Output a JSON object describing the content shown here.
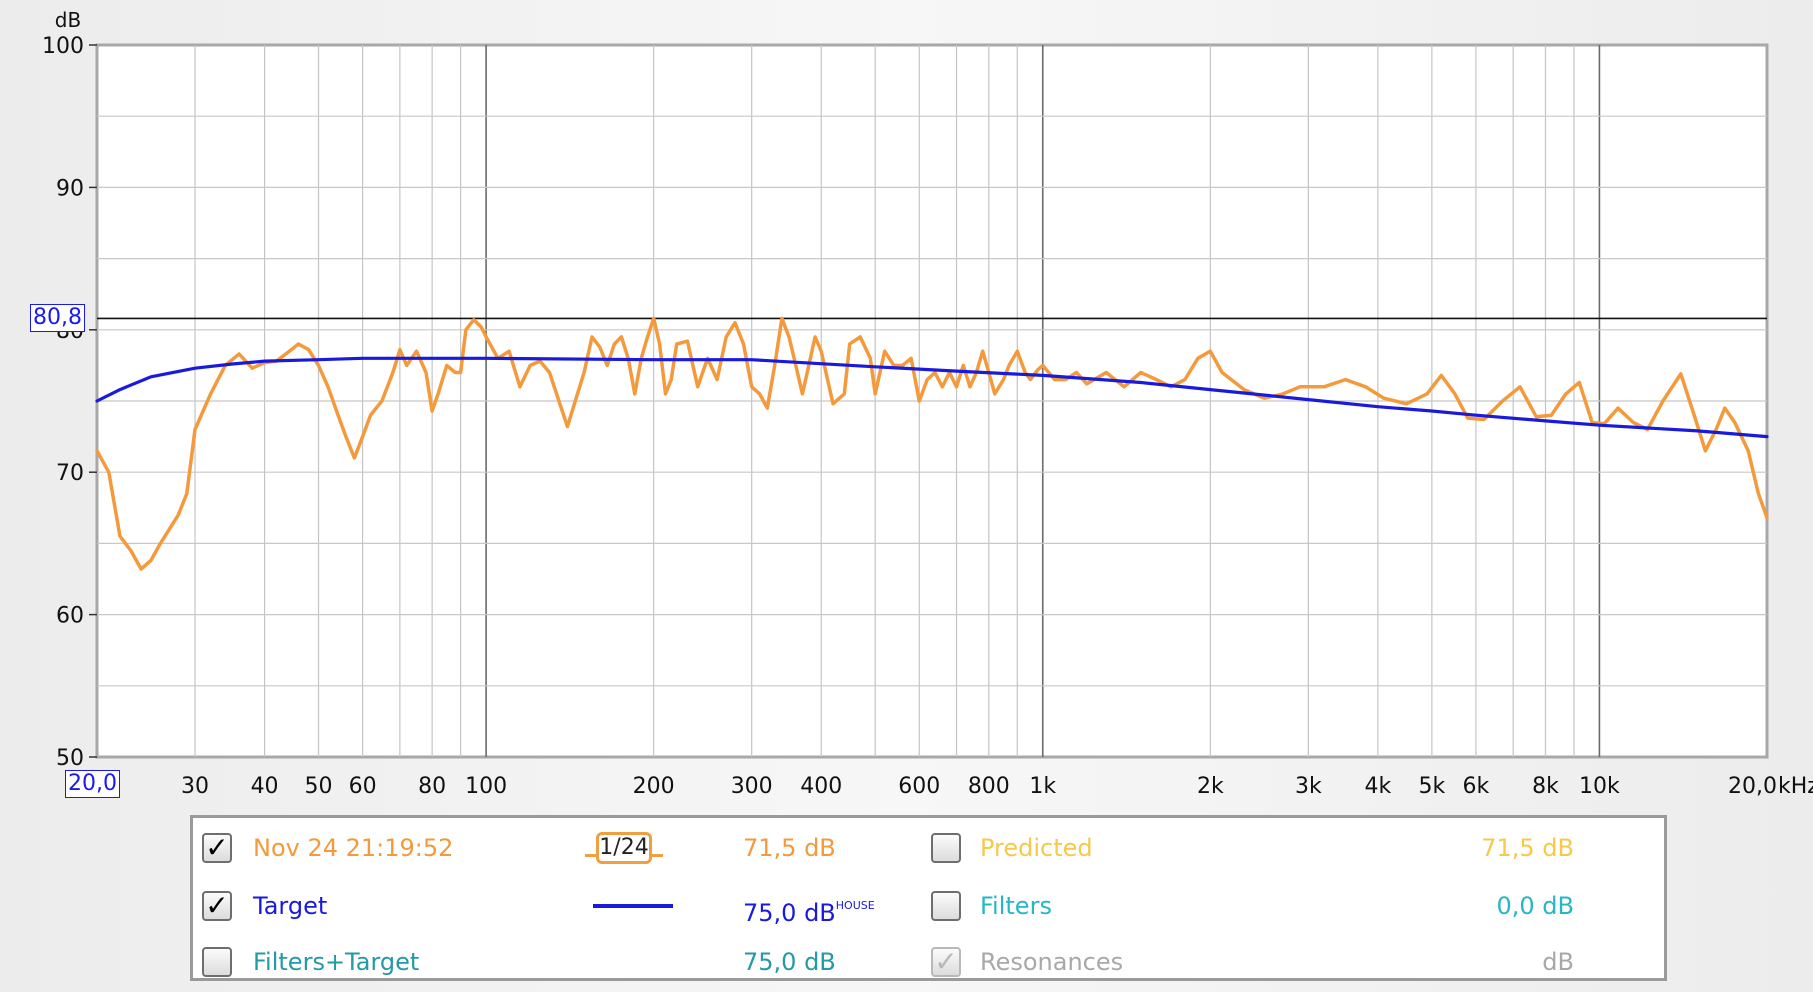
{
  "chart_data": {
    "type": "line",
    "ylabel": "dB",
    "xunit": "kHz",
    "x_scale": "log",
    "xlim": [
      20,
      20000
    ],
    "ylim": [
      50,
      100
    ],
    "y_ticks": [
      "100",
      "90",
      "80",
      "70",
      "60",
      "50"
    ],
    "x_tick_labels": [
      {
        "f": 20,
        "label": "20,0"
      },
      {
        "f": 30,
        "label": "30"
      },
      {
        "f": 40,
        "label": "40"
      },
      {
        "f": 50,
        "label": "50"
      },
      {
        "f": 60,
        "label": "60"
      },
      {
        "f": 80,
        "label": "80"
      },
      {
        "f": 100,
        "label": "100"
      },
      {
        "f": 200,
        "label": "200"
      },
      {
        "f": 300,
        "label": "300"
      },
      {
        "f": 400,
        "label": "400"
      },
      {
        "f": 600,
        "label": "600"
      },
      {
        "f": 800,
        "label": "800"
      },
      {
        "f": 1000,
        "label": "1k"
      },
      {
        "f": 2000,
        "label": "2k"
      },
      {
        "f": 3000,
        "label": "3k"
      },
      {
        "f": 4000,
        "label": "4k"
      },
      {
        "f": 5000,
        "label": "5k"
      },
      {
        "f": 6000,
        "label": "6k"
      },
      {
        "f": 8000,
        "label": "8k"
      },
      {
        "f": 10000,
        "label": "10k"
      },
      {
        "f": 20000,
        "label": "20,0"
      }
    ],
    "cursor": {
      "y": 80.8,
      "label": "80,8"
    },
    "x_cursor_label": "20,0",
    "grid": true,
    "series": [
      {
        "name": "Nov 24 21:19:52",
        "color": "#f49a3c",
        "points": [
          [
            20,
            71.5
          ],
          [
            21,
            70
          ],
          [
            22,
            65.5
          ],
          [
            23,
            64.5
          ],
          [
            24,
            63.2
          ],
          [
            25,
            63.8
          ],
          [
            26,
            65
          ],
          [
            28,
            67
          ],
          [
            29,
            68.5
          ],
          [
            30,
            73
          ],
          [
            32,
            75.5
          ],
          [
            34,
            77.5
          ],
          [
            36,
            78.3
          ],
          [
            38,
            77.3
          ],
          [
            40,
            77.7
          ],
          [
            42,
            77.8
          ],
          [
            44,
            78.4
          ],
          [
            46,
            79
          ],
          [
            48,
            78.6
          ],
          [
            50,
            77.5
          ],
          [
            52,
            76
          ],
          [
            54,
            74.2
          ],
          [
            56,
            72.5
          ],
          [
            58,
            71
          ],
          [
            60,
            72.5
          ],
          [
            62,
            74
          ],
          [
            65,
            75
          ],
          [
            68,
            77
          ],
          [
            70,
            78.6
          ],
          [
            72,
            77.5
          ],
          [
            75,
            78.5
          ],
          [
            78,
            77
          ],
          [
            80,
            74.3
          ],
          [
            82,
            75.5
          ],
          [
            85,
            77.5
          ],
          [
            88,
            77
          ],
          [
            90,
            77
          ],
          [
            92,
            80
          ],
          [
            95,
            80.7
          ],
          [
            98,
            80.2
          ],
          [
            100,
            79.5
          ],
          [
            105,
            78
          ],
          [
            110,
            78.5
          ],
          [
            115,
            76
          ],
          [
            120,
            77.5
          ],
          [
            125,
            77.8
          ],
          [
            130,
            77
          ],
          [
            140,
            73.2
          ],
          [
            150,
            77
          ],
          [
            155,
            79.5
          ],
          [
            160,
            78.8
          ],
          [
            165,
            77.5
          ],
          [
            170,
            79
          ],
          [
            175,
            79.5
          ],
          [
            180,
            78
          ],
          [
            185,
            75.5
          ],
          [
            190,
            78
          ],
          [
            195,
            79.5
          ],
          [
            200,
            80.8
          ],
          [
            205,
            79
          ],
          [
            210,
            75.5
          ],
          [
            215,
            76.5
          ],
          [
            220,
            79
          ],
          [
            230,
            79.2
          ],
          [
            240,
            76
          ],
          [
            250,
            78
          ],
          [
            260,
            76.5
          ],
          [
            270,
            79.5
          ],
          [
            280,
            80.5
          ],
          [
            290,
            79
          ],
          [
            300,
            76
          ],
          [
            310,
            75.5
          ],
          [
            320,
            74.5
          ],
          [
            330,
            77.5
          ],
          [
            340,
            80.8
          ],
          [
            350,
            79.5
          ],
          [
            360,
            77.5
          ],
          [
            370,
            75.5
          ],
          [
            380,
            77.5
          ],
          [
            390,
            79.5
          ],
          [
            400,
            78.5
          ],
          [
            420,
            74.8
          ],
          [
            440,
            75.5
          ],
          [
            450,
            79
          ],
          [
            470,
            79.5
          ],
          [
            490,
            78
          ],
          [
            500,
            75.5
          ],
          [
            520,
            78.5
          ],
          [
            540,
            77.5
          ],
          [
            560,
            77.5
          ],
          [
            580,
            78
          ],
          [
            600,
            75
          ],
          [
            620,
            76.5
          ],
          [
            640,
            77
          ],
          [
            660,
            76
          ],
          [
            680,
            77
          ],
          [
            700,
            76
          ],
          [
            720,
            77.5
          ],
          [
            740,
            76
          ],
          [
            760,
            77
          ],
          [
            780,
            78.5
          ],
          [
            800,
            77
          ],
          [
            820,
            75.5
          ],
          [
            850,
            76.5
          ],
          [
            870,
            77.5
          ],
          [
            900,
            78.5
          ],
          [
            930,
            77
          ],
          [
            950,
            76.5
          ],
          [
            980,
            77.2
          ],
          [
            1000,
            77.5
          ],
          [
            1050,
            76.5
          ],
          [
            1100,
            76.5
          ],
          [
            1150,
            77
          ],
          [
            1200,
            76.2
          ],
          [
            1300,
            77
          ],
          [
            1400,
            76
          ],
          [
            1500,
            77
          ],
          [
            1600,
            76.5
          ],
          [
            1700,
            76
          ],
          [
            1800,
            76.5
          ],
          [
            1900,
            78
          ],
          [
            2000,
            78.5
          ],
          [
            2100,
            77
          ],
          [
            2300,
            75.8
          ],
          [
            2500,
            75.2
          ],
          [
            2700,
            75.5
          ],
          [
            2900,
            76
          ],
          [
            3200,
            76
          ],
          [
            3500,
            76.5
          ],
          [
            3800,
            76
          ],
          [
            4100,
            75.2
          ],
          [
            4500,
            74.8
          ],
          [
            4900,
            75.5
          ],
          [
            5200,
            76.8
          ],
          [
            5500,
            75.5
          ],
          [
            5800,
            73.8
          ],
          [
            6200,
            73.7
          ],
          [
            6700,
            75
          ],
          [
            7200,
            76
          ],
          [
            7700,
            73.9
          ],
          [
            8200,
            74
          ],
          [
            8700,
            75.5
          ],
          [
            9200,
            76.3
          ],
          [
            9700,
            73.5
          ],
          [
            10200,
            73.4
          ],
          [
            10800,
            74.5
          ],
          [
            11500,
            73.5
          ],
          [
            12200,
            73
          ],
          [
            13000,
            75
          ],
          [
            14000,
            76.9
          ],
          [
            14800,
            74
          ],
          [
            15500,
            71.5
          ],
          [
            16200,
            73
          ],
          [
            16800,
            74.5
          ],
          [
            17500,
            73.5
          ],
          [
            18500,
            71.5
          ],
          [
            19300,
            68.5
          ],
          [
            20000,
            66.8
          ]
        ]
      },
      {
        "name": "Target",
        "color": "#1a1adc",
        "points": [
          [
            20,
            75
          ],
          [
            22,
            75.8
          ],
          [
            25,
            76.7
          ],
          [
            30,
            77.3
          ],
          [
            35,
            77.6
          ],
          [
            40,
            77.8
          ],
          [
            50,
            77.9
          ],
          [
            60,
            78
          ],
          [
            80,
            78
          ],
          [
            100,
            78
          ],
          [
            200,
            77.9
          ],
          [
            300,
            77.9
          ],
          [
            500,
            77.4
          ],
          [
            700,
            77.1
          ],
          [
            1000,
            76.8
          ],
          [
            1500,
            76.3
          ],
          [
            2000,
            75.8
          ],
          [
            3000,
            75.1
          ],
          [
            4000,
            74.6
          ],
          [
            5000,
            74.3
          ],
          [
            6000,
            74
          ],
          [
            8000,
            73.6
          ],
          [
            10000,
            73.3
          ],
          [
            15000,
            72.9
          ],
          [
            20000,
            72.5
          ]
        ]
      }
    ]
  },
  "legend": {
    "row1": {
      "name": "Nov 24 21:19:52",
      "smoothing": "1/24",
      "value": "71,5 dB",
      "right_name": "Predicted",
      "right_value": "71,5 dB"
    },
    "row2": {
      "name": "Target",
      "value": "75,0 dB",
      "value_sup": "HOUSE",
      "right_name": "Filters",
      "right_value": "0,0 dB"
    },
    "row3": {
      "name": "Filters+Target",
      "value": "75,0 dB",
      "right_name": "Resonances",
      "right_value": "dB"
    },
    "colors": {
      "measurement": "#f49a3c",
      "target": "#1a1adc",
      "predicted": "#f7c84a",
      "filters": "#26b6c4",
      "filters_target": "#249aa4",
      "disabled": "#a8a8a8"
    },
    "check_glyph": "✓"
  }
}
